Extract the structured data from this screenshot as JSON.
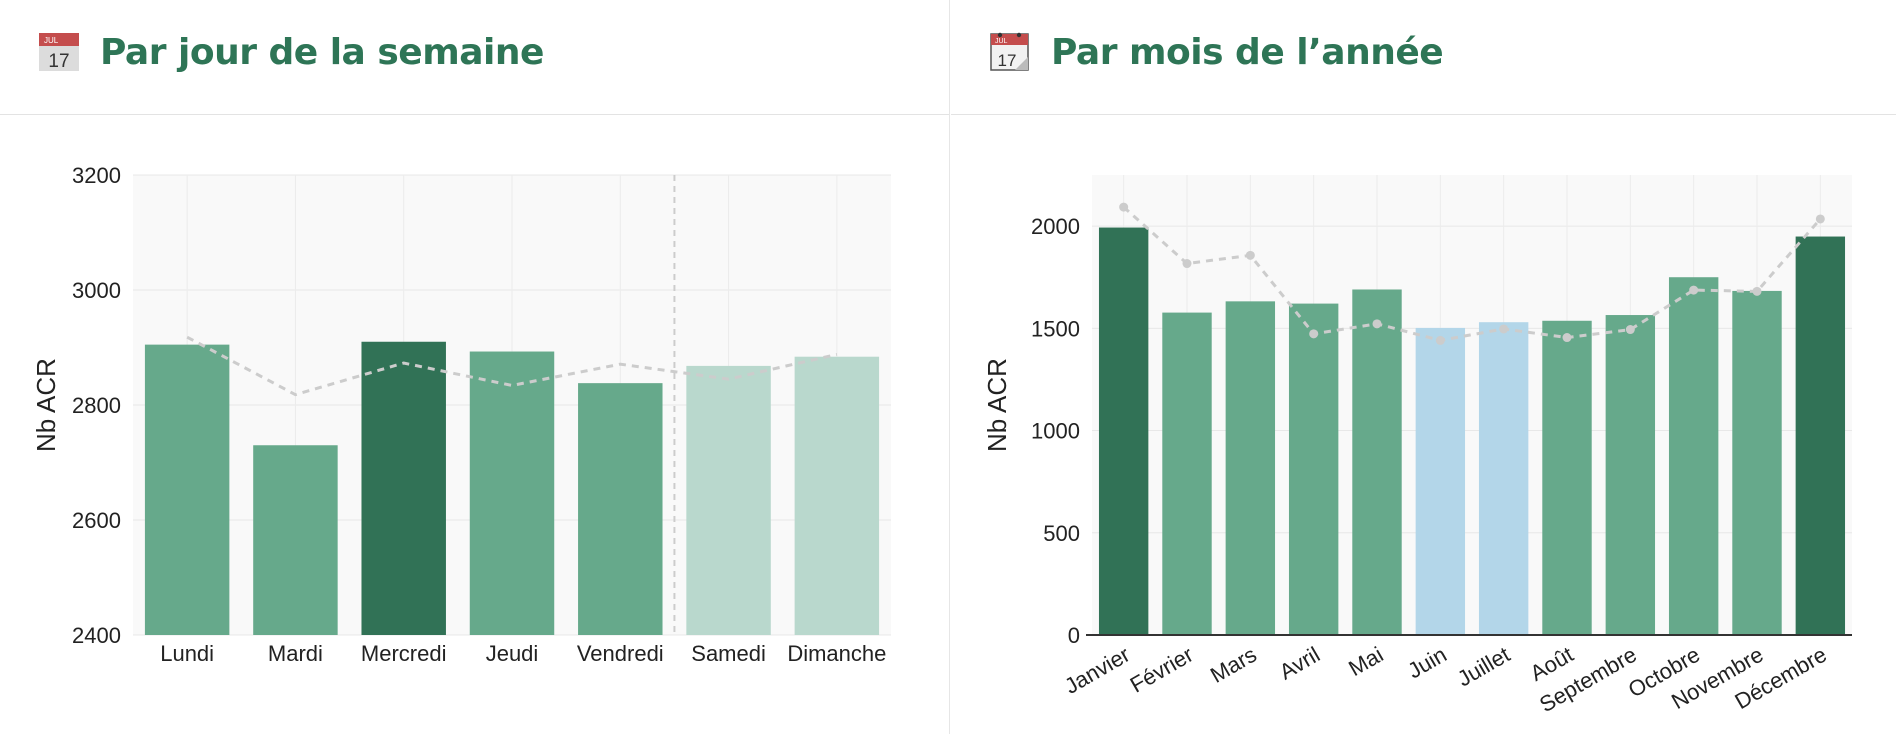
{
  "panels": {
    "weekday": {
      "title": "Par jour de la semaine",
      "icon": "calendar-icon"
    },
    "month": {
      "title": "Par mois de l’année",
      "icon": "tear-off-calendar-icon"
    }
  },
  "colors": {
    "dark_green": "#317256",
    "mid_green": "#66a98b",
    "light_green": "#b9d8cd",
    "light_blue": "#b3d6e9",
    "trend": "#cccccc",
    "plot_bg": "#f9f9f9"
  },
  "chart_data": [
    {
      "type": "bar",
      "ylabel": "Nb ACR",
      "xlabel": "",
      "ylim": [
        2400,
        3200
      ],
      "yticks": [
        2400,
        2600,
        2800,
        3000,
        3200
      ],
      "grid": true,
      "categories": [
        "Lundi",
        "Mardi",
        "Mercredi",
        "Jeudi",
        "Vendredi",
        "Samedi",
        "Dimanche"
      ],
      "values": [
        2905,
        2730,
        2910,
        2893,
        2838,
        2868,
        2884
      ],
      "bar_colors": [
        "mid_green",
        "mid_green",
        "dark_green",
        "mid_green",
        "mid_green",
        "light_green",
        "light_green"
      ],
      "trend_line": [
        2918,
        2818,
        2873,
        2834,
        2871,
        2845,
        2888
      ],
      "weekend_separator_after": "Vendredi"
    },
    {
      "type": "bar",
      "ylabel": "Nb ACR",
      "xlabel": "",
      "ylim": [
        0,
        2250
      ],
      "yticks": [
        0,
        500,
        1000,
        1500,
        2000
      ],
      "grid": true,
      "categories": [
        "Janvier",
        "Février",
        "Mars",
        "Avril",
        "Mai",
        "Juin",
        "Juillet",
        "Août",
        "Septembre",
        "Octobre",
        "Novembre",
        "Décembre"
      ],
      "values": [
        1993,
        1577,
        1632,
        1621,
        1690,
        1502,
        1530,
        1537,
        1565,
        1750,
        1683,
        1949
      ],
      "bar_colors": [
        "dark_green",
        "mid_green",
        "mid_green",
        "mid_green",
        "mid_green",
        "light_blue",
        "light_blue",
        "mid_green",
        "mid_green",
        "mid_green",
        "mid_green",
        "dark_green"
      ],
      "trend_line": [
        2093,
        1817,
        1857,
        1473,
        1522,
        1441,
        1497,
        1455,
        1494,
        1687,
        1681,
        2035
      ]
    }
  ]
}
